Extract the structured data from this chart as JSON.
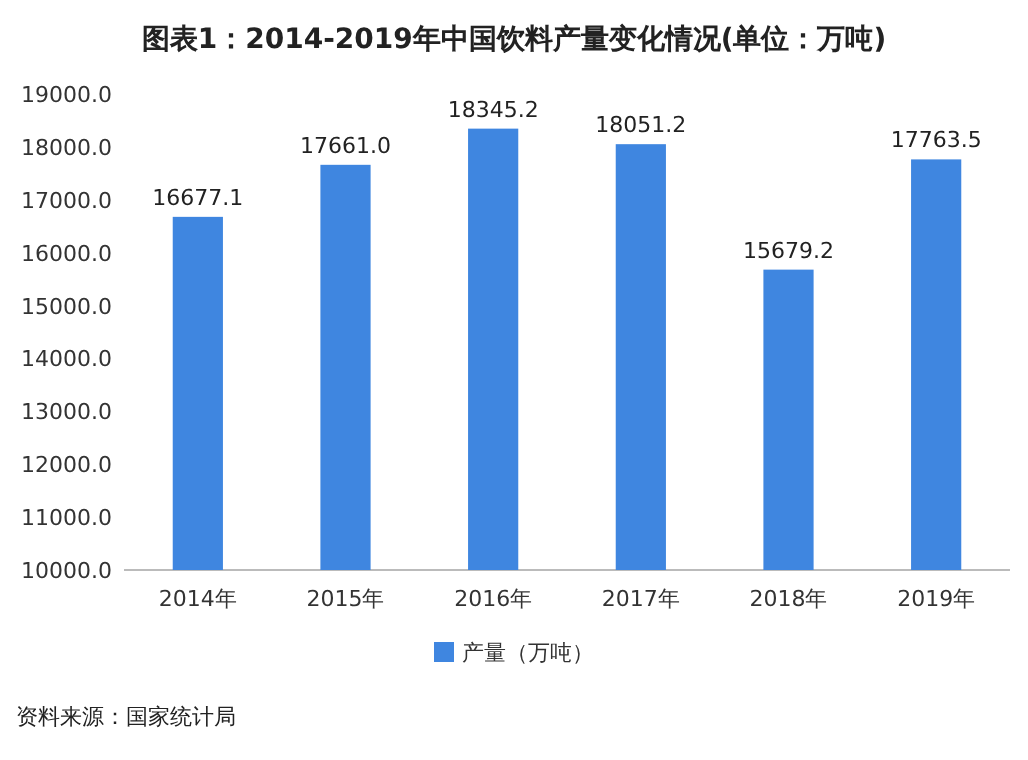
{
  "chart_data": {
    "type": "bar",
    "title": "图表1：2014-2019年中国饮料产量变化情况(单位：万吨)",
    "categories": [
      "2014年",
      "2015年",
      "2016年",
      "2017年",
      "2018年",
      "2019年"
    ],
    "series": [
      {
        "name": "产量（万吨）",
        "color": "#3f86e0",
        "values": [
          16677.1,
          17661.0,
          18345.2,
          18051.2,
          15679.2,
          17763.5
        ],
        "value_labels": [
          "16677.1",
          "17661.0",
          "18345.2",
          "18051.2",
          "15679.2",
          "17763.5"
        ]
      }
    ],
    "ylim": [
      10000,
      19000
    ],
    "yticks": [
      {
        "value": 10000,
        "label": "10000.0"
      },
      {
        "value": 11000,
        "label": "11000.0"
      },
      {
        "value": 12000,
        "label": "12000.0"
      },
      {
        "value": 13000,
        "label": "13000.0"
      },
      {
        "value": 14000,
        "label": "14000.0"
      },
      {
        "value": 15000,
        "label": "15000.0"
      },
      {
        "value": 16000,
        "label": "16000.0"
      },
      {
        "value": 17000,
        "label": "17000.0"
      },
      {
        "value": 18000,
        "label": "18000.0"
      },
      {
        "value": 19000,
        "label": "19000.0"
      }
    ],
    "grid": false,
    "legend": "bottom",
    "annotations": [
      "资料来源：国家统计局"
    ]
  }
}
